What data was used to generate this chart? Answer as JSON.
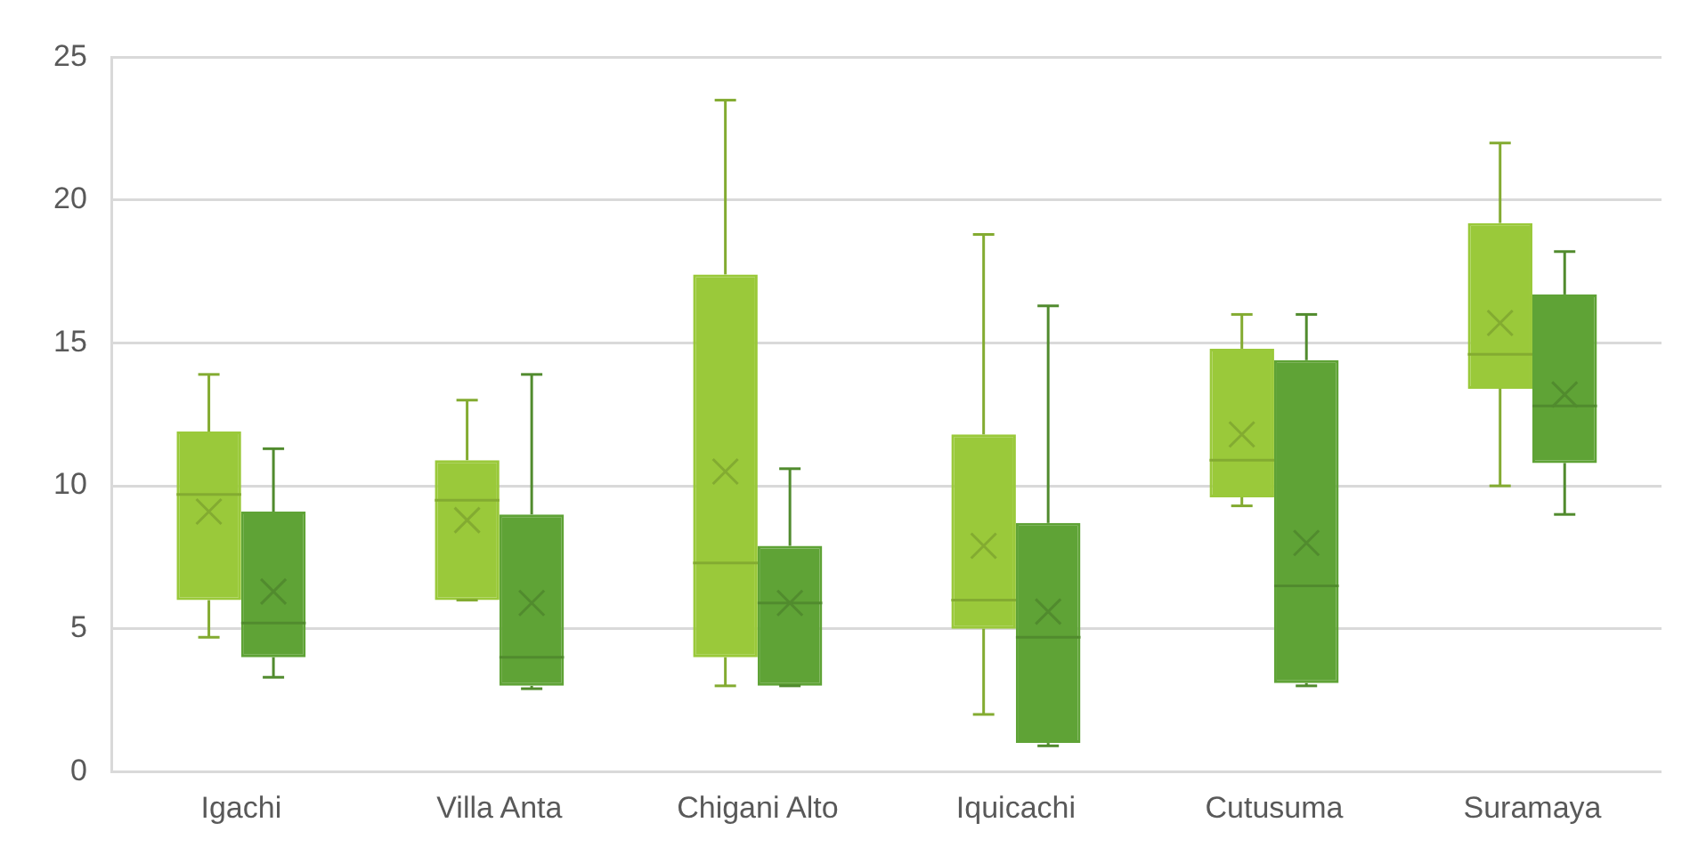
{
  "chart_data": {
    "type": "box",
    "categories": [
      "Igachi",
      "Villa Anta",
      "Chigani Alto",
      "Iquicachi",
      "Cutusuma",
      "Suramaya"
    ],
    "series": [
      {
        "color": "#9ac93a",
        "boxes": [
          {
            "low": 4.7,
            "q1": 6,
            "median": 9.7,
            "q3": 11.9,
            "high": 13.9,
            "mean": 9.1
          },
          {
            "low": 6,
            "q1": 6,
            "median": 9.5,
            "q3": 10.9,
            "high": 13,
            "mean": 8.8
          },
          {
            "low": 3,
            "q1": 4,
            "median": 7.3,
            "q3": 17.4,
            "high": 23.5,
            "mean": 10.5
          },
          {
            "low": 2,
            "q1": 5,
            "median": 6,
            "q3": 11.8,
            "high": 18.8,
            "mean": 7.9
          },
          {
            "low": 9.3,
            "q1": 9.6,
            "median": 10.9,
            "q3": 14.8,
            "high": 16,
            "mean": 11.8
          },
          {
            "low": 10,
            "q1": 13.4,
            "median": 14.6,
            "q3": 19.2,
            "high": 22,
            "mean": 15.7
          }
        ]
      },
      {
        "color": "#5fa336",
        "boxes": [
          {
            "low": 3.3,
            "q1": 4,
            "median": 5.2,
            "q3": 9.1,
            "high": 11.3,
            "mean": 6.3
          },
          {
            "low": 2.9,
            "q1": 3,
            "median": 4,
            "q3": 9,
            "high": 13.9,
            "mean": 5.9
          },
          {
            "low": 3,
            "q1": 3,
            "median": 5.9,
            "q3": 7.9,
            "high": 10.6,
            "mean": 5.9
          },
          {
            "low": 0.9,
            "q1": 1,
            "median": 4.7,
            "q3": 8.7,
            "high": 16.3,
            "mean": 5.6
          },
          {
            "low": 3,
            "q1": 3.1,
            "median": 6.5,
            "q3": 14.4,
            "high": 16,
            "mean": 8
          },
          {
            "low": 9,
            "q1": 10.8,
            "median": 12.8,
            "q3": 16.7,
            "high": 18.2,
            "mean": 13.2
          }
        ]
      }
    ],
    "ylim": [
      0,
      25
    ],
    "yticks": [
      0,
      5,
      10,
      15,
      20,
      25
    ],
    "grid": "y",
    "marker": "cross"
  }
}
